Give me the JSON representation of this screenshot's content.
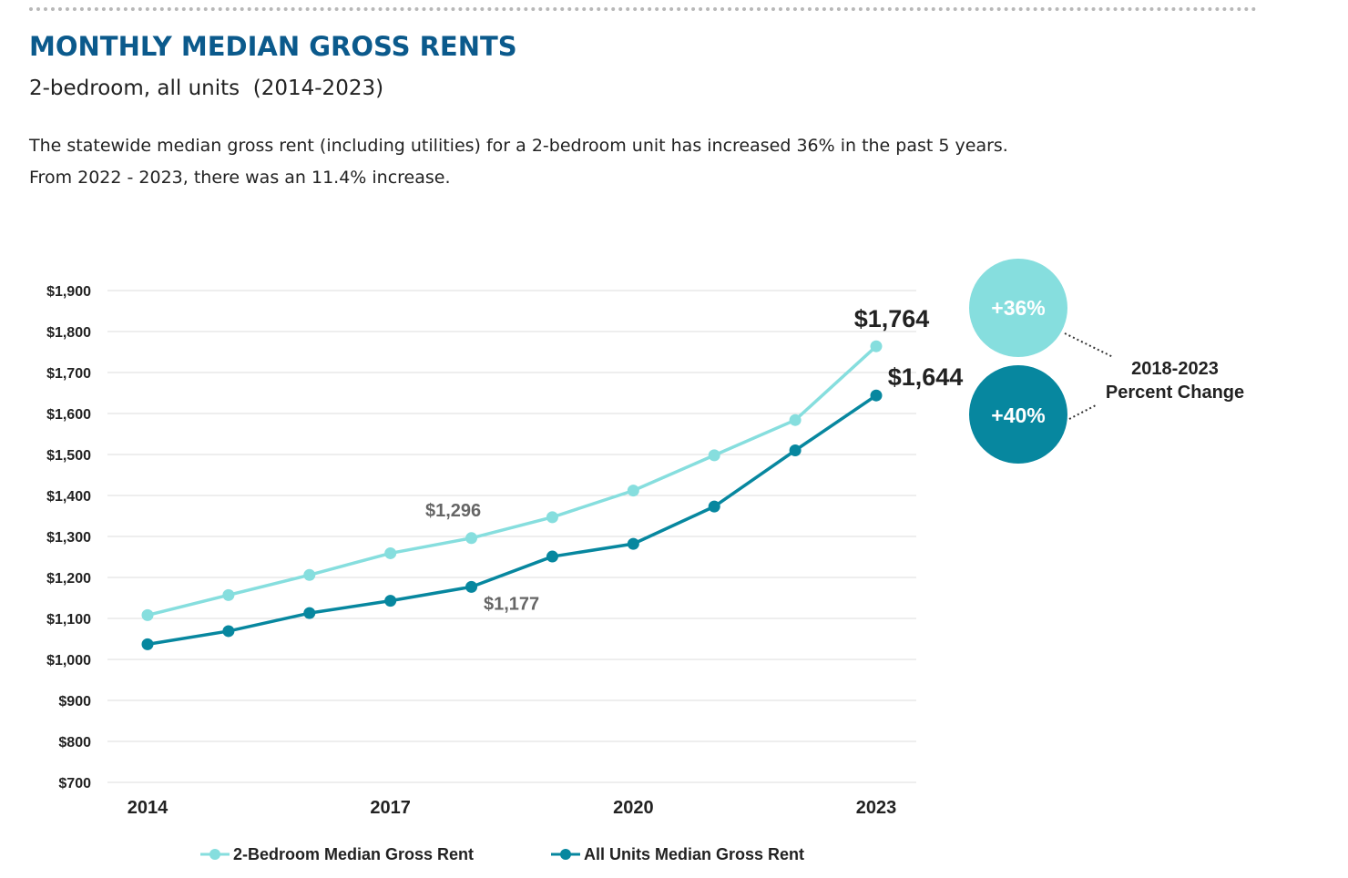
{
  "header": {
    "title": "MONTHLY MEDIAN GROSS RENTS",
    "subtitle": "2-bedroom, all units  (2014-2023)",
    "description_line1": "The statewide median gross rent (including utilities) for a 2-bedroom unit has increased 36% in the past 5 years.",
    "description_line2": "From 2022 - 2023, there was an 11.4% increase."
  },
  "colors": {
    "two_bedroom": "#86dede",
    "all_units": "#07879f",
    "grid": "#dddddd"
  },
  "chart_data": {
    "type": "line",
    "x": [
      2014,
      2015,
      2016,
      2017,
      2018,
      2019,
      2020,
      2021,
      2022,
      2023
    ],
    "x_tick_labels": [
      "2014",
      "2017",
      "2020",
      "2023"
    ],
    "x_tick_values": [
      2014,
      2017,
      2020,
      2023
    ],
    "ylim": [
      700,
      1900
    ],
    "y_ticks": [
      700,
      800,
      900,
      1000,
      1100,
      1200,
      1300,
      1400,
      1500,
      1600,
      1700,
      1800,
      1900
    ],
    "y_tick_labels": [
      "$700",
      "$800",
      "$900",
      "$1,000",
      "$1,100",
      "$1,200",
      "$1,300",
      "$1,400",
      "$1,500",
      "$1,600",
      "$1,700",
      "$1,800",
      "$1,900"
    ],
    "grid": true,
    "legend_position": "bottom",
    "series": [
      {
        "key": "two_bedroom",
        "name": "2-Bedroom Median Gross Rent",
        "values": [
          1108,
          1157,
          1206,
          1259,
          1296,
          1347,
          1412,
          1498,
          1584,
          1764
        ]
      },
      {
        "key": "all_units",
        "name": "All Units Median Gross Rent",
        "values": [
          1037,
          1069,
          1113,
          1143,
          1177,
          1251,
          1282,
          1373,
          1510,
          1644
        ]
      }
    ],
    "annotations": {
      "two_bedroom_2018": "$1,296",
      "all_units_2018": "$1,177",
      "two_bedroom_2023": "$1,764",
      "all_units_2023": "$1,644"
    },
    "percent_change": {
      "label_line1": "2018-2023",
      "label_line2": "Percent Change",
      "two_bedroom": "+36%",
      "all_units": "+40%"
    }
  }
}
